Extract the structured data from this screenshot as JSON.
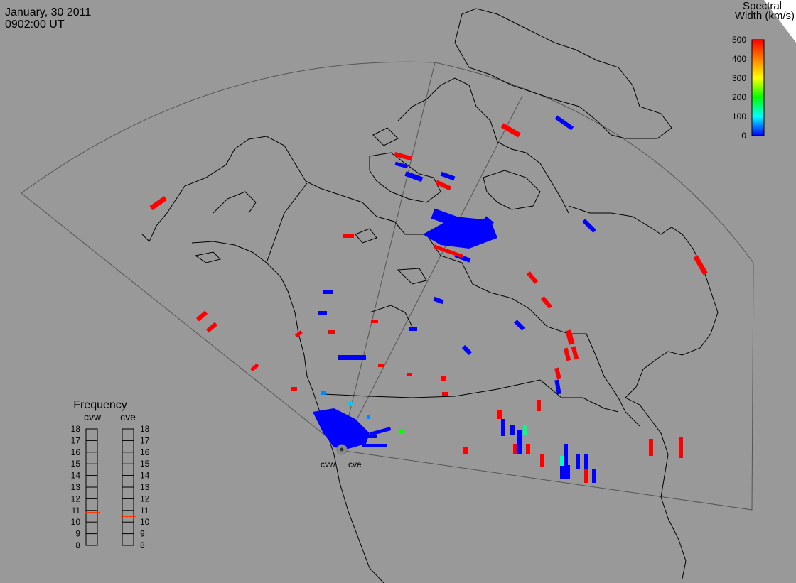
{
  "header": {
    "date": "January, 30 2011",
    "time": "0902:00 UT"
  },
  "colorbar": {
    "title_line1": "Spectral",
    "title_line2": "Width (km/s)",
    "ticks": [
      "500",
      "400",
      "300",
      "200",
      "100",
      "0"
    ],
    "scale_min": 0,
    "scale_max": 500,
    "colors": [
      "#0000ff",
      "#00ffff",
      "#00ff00",
      "#ffff00",
      "#ff8000",
      "#ff0000"
    ]
  },
  "radars": {
    "west_label": "cvw",
    "east_label": "cve"
  },
  "frequency_panel": {
    "title": "Frequency",
    "col_west": "cvw",
    "col_east": "cve",
    "ticks": [
      "18",
      "17",
      "16",
      "15",
      "14",
      "13",
      "12",
      "11",
      "10",
      "9",
      "8"
    ],
    "cvw_marker_mhz": 10.8,
    "cve_marker_mhz": 10.5,
    "marker_color": "#ff3300"
  }
}
